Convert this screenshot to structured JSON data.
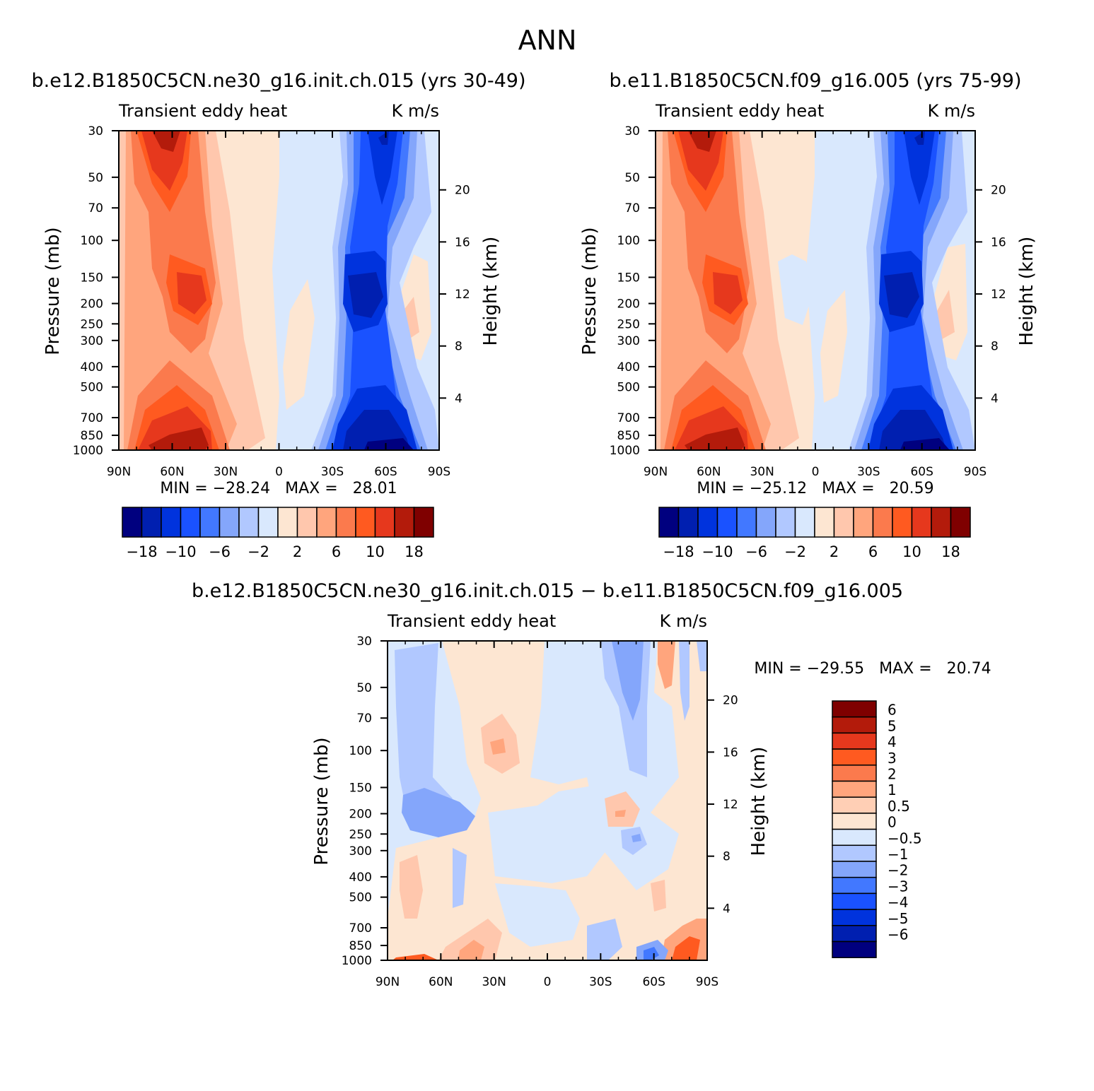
{
  "page_title": "ANN",
  "chart_data": [
    {
      "type": "heatmap",
      "id": "panel1",
      "title": "b.e12.B1850C5CN.ne30_g16.init.ch.015 (yrs 30-49)",
      "left_label": "Transient eddy heat",
      "right_label": "K m/s",
      "ylabel": "Pressure (mb)",
      "y2label": "Height (km)",
      "x_ticks": [
        "90N",
        "60N",
        "30N",
        "0",
        "30S",
        "60S",
        "90S"
      ],
      "y_ticks": [
        "30",
        "50",
        "70",
        "100",
        "150",
        "200",
        "250",
        "300",
        "400",
        "500",
        "700",
        "850",
        "1000"
      ],
      "y2_ticks": [
        "20",
        "16",
        "12",
        "8",
        "4"
      ],
      "stats": "MIN = −28.24   MAX =   28.01",
      "min": -28.24,
      "max": 28.01,
      "colorbar_labels": [
        "−18",
        "−10",
        "−6",
        "−2",
        "2",
        "6",
        "10",
        "18"
      ],
      "colors": [
        "#00007f",
        "#001fb0",
        "#0033dd",
        "#1a52ff",
        "#4278ff",
        "#84a6fb",
        "#b1c8ff",
        "#d9e8fd",
        "#fde6d2",
        "#ffc7ad",
        "#ffa57d",
        "#fb7a4d",
        "#ff5a20",
        "#e6381d",
        "#b31b0b",
        "#7f0000"
      ]
    },
    {
      "type": "heatmap",
      "id": "panel2",
      "title": "b.e11.B1850C5CN.f09_g16.005 (yrs 75-99)",
      "left_label": "Transient eddy heat",
      "right_label": "K m/s",
      "ylabel": "Pressure (mb)",
      "y2label": "Height (km)",
      "x_ticks": [
        "90N",
        "60N",
        "30N",
        "0",
        "30S",
        "60S",
        "90S"
      ],
      "y_ticks": [
        "30",
        "50",
        "70",
        "100",
        "150",
        "200",
        "250",
        "300",
        "400",
        "500",
        "700",
        "850",
        "1000"
      ],
      "y2_ticks": [
        "20",
        "16",
        "12",
        "8",
        "4"
      ],
      "stats": "MIN = −25.12   MAX =   20.59",
      "min": -25.12,
      "max": 20.59,
      "colorbar_labels": [
        "−18",
        "−10",
        "−6",
        "−2",
        "2",
        "6",
        "10",
        "18"
      ],
      "colors": [
        "#00007f",
        "#001fb0",
        "#0033dd",
        "#1a52ff",
        "#4278ff",
        "#84a6fb",
        "#b1c8ff",
        "#d9e8fd",
        "#fde6d2",
        "#ffc7ad",
        "#ffa57d",
        "#fb7a4d",
        "#ff5a20",
        "#e6381d",
        "#b31b0b",
        "#7f0000"
      ]
    },
    {
      "type": "heatmap",
      "id": "panel3",
      "title": "b.e12.B1850C5CN.ne30_g16.init.ch.015 − b.e11.B1850C5CN.f09_g16.005",
      "left_label": "Transient eddy heat",
      "right_label": "K m/s",
      "ylabel": "Pressure (mb)",
      "y2label": "Height (km)",
      "x_ticks": [
        "90N",
        "60N",
        "30N",
        "0",
        "30S",
        "60S",
        "90S"
      ],
      "y_ticks": [
        "30",
        "50",
        "70",
        "100",
        "150",
        "200",
        "250",
        "300",
        "400",
        "500",
        "700",
        "850",
        "1000"
      ],
      "y2_ticks": [
        "20",
        "16",
        "12",
        "8",
        "4"
      ],
      "stats": "MIN = −29.55   MAX =   20.74",
      "min": -29.55,
      "max": 20.74,
      "colorbar_labels": [
        "6",
        "5",
        "4",
        "3",
        "2",
        "1",
        "0.5",
        "0",
        "−0.5",
        "−1",
        "−2",
        "−3",
        "−4",
        "−5",
        "−6"
      ],
      "colors": [
        "#7f0000",
        "#b31b0b",
        "#e6381d",
        "#ff5a20",
        "#fb7a4d",
        "#ffa57d",
        "#ffcfb5",
        "#fde6d2",
        "#d9e8fd",
        "#b1c8ff",
        "#84a6fb",
        "#4278ff",
        "#1a52ff",
        "#0033dd",
        "#001fb0",
        "#00007f"
      ]
    }
  ]
}
